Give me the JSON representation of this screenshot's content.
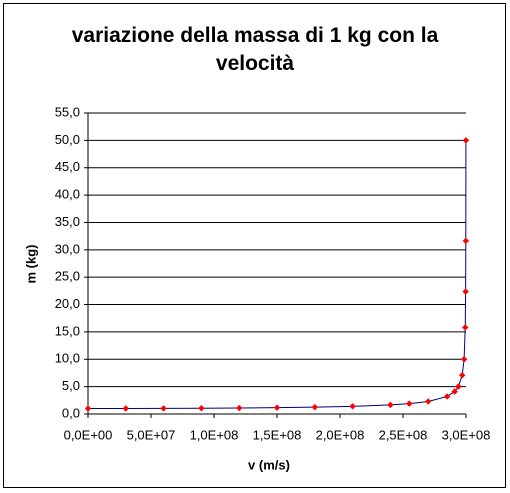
{
  "chart_data": {
    "type": "scatter",
    "title": "variazione della massa di 1 kg con la velocità",
    "x_label": "v (m/s)",
    "y_label": "m (kg)",
    "x": [
      0,
      30000000,
      60000000,
      90000000,
      120000000,
      150000000,
      180000000,
      210000000,
      240000000,
      255000000,
      270000000,
      285000000,
      291000000,
      294000000,
      297000000,
      298500000,
      299400000,
      299700000,
      299850000,
      299940000
    ],
    "series": [
      {
        "color": "#000080",
        "marker_color": "#ff0000",
        "values": [
          1.0,
          1.005,
          1.021,
          1.048,
          1.091,
          1.155,
          1.25,
          1.4,
          1.667,
          1.898,
          2.294,
          3.203,
          4.113,
          5.025,
          7.089,
          10.01,
          15.82,
          22.37,
          31.63,
          50.0
        ]
      }
    ],
    "xlim": [
      0,
      300000000
    ],
    "ylim": [
      0,
      55
    ],
    "xticks": [
      {
        "value": 0,
        "label": "0,0E+00"
      },
      {
        "value": 50000000,
        "label": "5,0E+07"
      },
      {
        "value": 100000000,
        "label": "1,0E+08"
      },
      {
        "value": 150000000,
        "label": "1,5E+08"
      },
      {
        "value": 200000000,
        "label": "2,0E+08"
      },
      {
        "value": 250000000,
        "label": "2,5E+08"
      },
      {
        "value": 300000000,
        "label": "3,0E+08"
      }
    ],
    "yticks": [
      {
        "value": 0,
        "label": "0,0"
      },
      {
        "value": 5,
        "label": "5,0"
      },
      {
        "value": 10,
        "label": "10,0"
      },
      {
        "value": 15,
        "label": "15,0"
      },
      {
        "value": 20,
        "label": "20,0"
      },
      {
        "value": 25,
        "label": "25,0"
      },
      {
        "value": 30,
        "label": "30,0"
      },
      {
        "value": 35,
        "label": "35,0"
      },
      {
        "value": 40,
        "label": "40,0"
      },
      {
        "value": 45,
        "label": "45,0"
      },
      {
        "value": 50,
        "label": "50,0"
      },
      {
        "value": 55,
        "label": "55,0"
      }
    ],
    "grid": true
  }
}
